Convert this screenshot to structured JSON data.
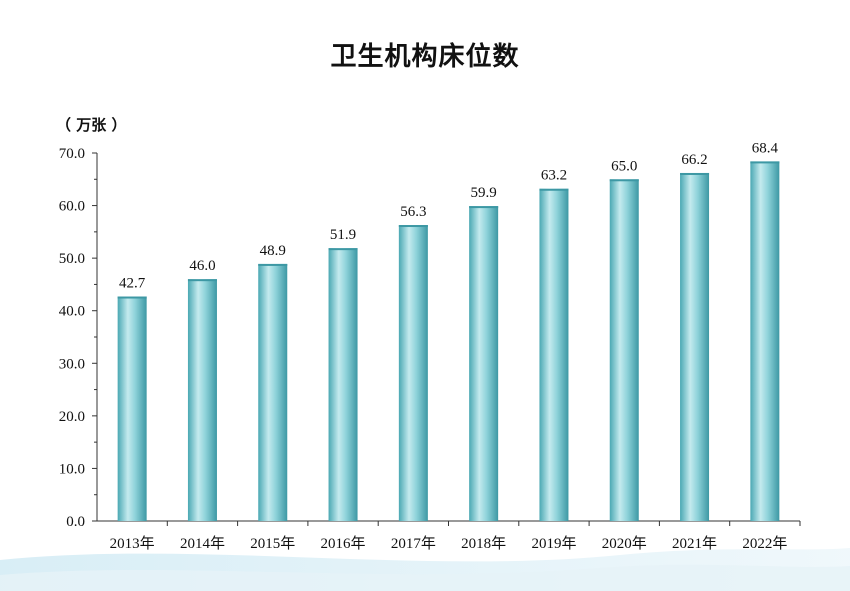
{
  "chart_data": {
    "type": "bar",
    "title": "卫生机构床位数",
    "unit_label": "（ 万张 ）",
    "categories": [
      "2013年",
      "2014年",
      "2015年",
      "2016年",
      "2017年",
      "2018年",
      "2019年",
      "2020年",
      "2021年",
      "2022年"
    ],
    "values": [
      42.7,
      46.0,
      48.9,
      51.9,
      56.3,
      59.9,
      63.2,
      65.0,
      66.2,
      68.4
    ],
    "value_labels": [
      "42.7",
      "46.0",
      "48.9",
      "51.9",
      "56.3",
      "59.9",
      "63.2",
      "65.0",
      "66.2",
      "68.4"
    ],
    "yticks": [
      "0.0",
      "10.0",
      "20.0",
      "30.0",
      "40.0",
      "50.0",
      "60.0",
      "70.0"
    ],
    "ylim": [
      0,
      70
    ],
    "grid": false,
    "colors": {
      "bar": "#6cc3cc",
      "bar_light": "#c8ecef",
      "bar_dark": "#3e9aa6",
      "axis": "#333333",
      "wave": "#d9eef6"
    }
  }
}
